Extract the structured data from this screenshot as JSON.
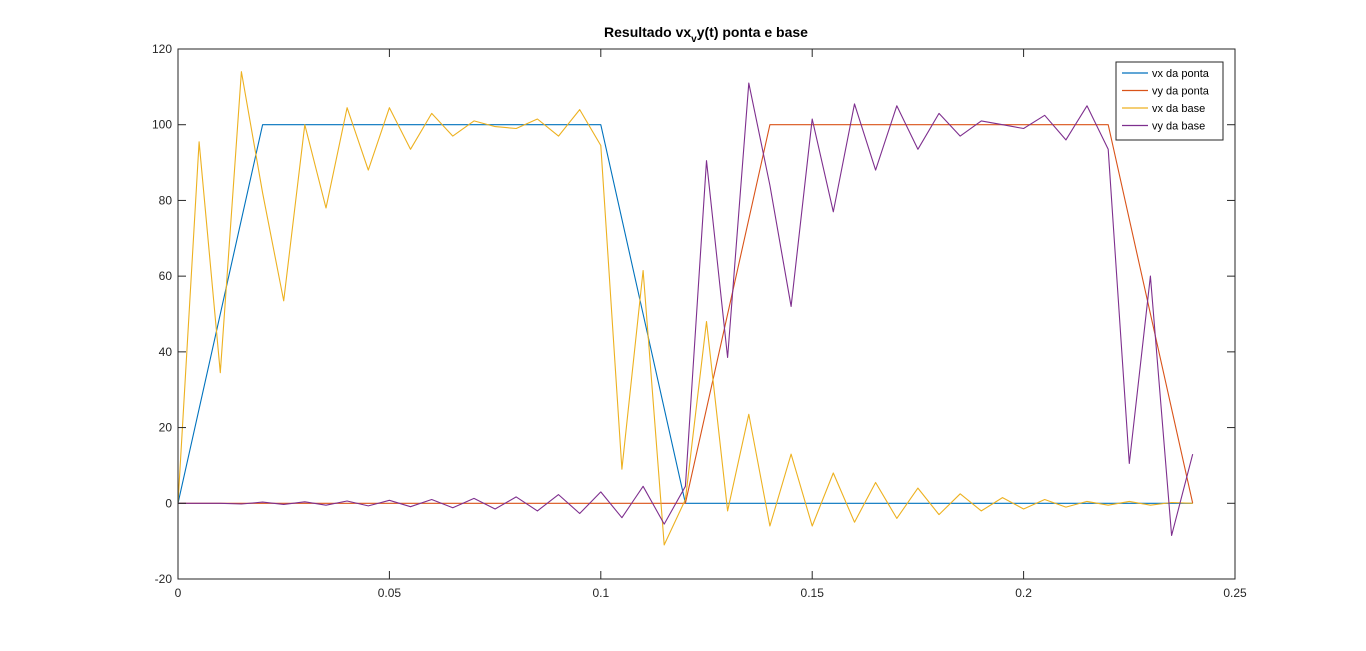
{
  "chart_data": {
    "type": "line",
    "title": {
      "main": "Resultado vx",
      "sub": "v",
      "rest": "y(t) ponta e base"
    },
    "xlim": [
      0,
      0.25
    ],
    "ylim": [
      -20,
      120
    ],
    "xticks": [
      0,
      0.05,
      0.1,
      0.15,
      0.2,
      0.25
    ],
    "xtick_labels": [
      "0",
      "0.05",
      "0.1",
      "0.15",
      "0.2",
      "0.25"
    ],
    "yticks": [
      -20,
      0,
      20,
      40,
      60,
      80,
      100,
      120
    ],
    "ytick_labels": [
      "-20",
      "0",
      "20",
      "40",
      "60",
      "80",
      "100",
      "120"
    ],
    "grid": false,
    "legend_position": "top-right",
    "series": [
      {
        "name": "vx da ponta",
        "color": "#0072BD",
        "x": [
          0,
          0.02,
          0.1,
          0.12,
          0.24
        ],
        "y": [
          0,
          100,
          100,
          0,
          0
        ]
      },
      {
        "name": " vy da ponta",
        "color": "#D95319",
        "x": [
          0,
          0.12,
          0.14,
          0.22,
          0.24
        ],
        "y": [
          0,
          0,
          100,
          100,
          0
        ]
      },
      {
        "name": "vx da base",
        "color": "#EDB120",
        "x": [
          0,
          0.005,
          0.01,
          0.015,
          0.02,
          0.025,
          0.03,
          0.035,
          0.04,
          0.045,
          0.05,
          0.055,
          0.06,
          0.065,
          0.07,
          0.075,
          0.08,
          0.085,
          0.09,
          0.095,
          0.1,
          0.105,
          0.11,
          0.115,
          0.12,
          0.125,
          0.13,
          0.135,
          0.14,
          0.145,
          0.15,
          0.155,
          0.16,
          0.165,
          0.17,
          0.175,
          0.18,
          0.185,
          0.19,
          0.195,
          0.2,
          0.205,
          0.21,
          0.215,
          0.22,
          0.225,
          0.23,
          0.235,
          0.24
        ],
        "y": [
          0,
          95.5,
          34.5,
          114,
          82,
          53.5,
          100,
          78,
          104.5,
          88,
          104.5,
          93.5,
          103,
          97,
          101,
          99.5,
          99,
          101.5,
          97,
          104,
          94.5,
          9,
          61.5,
          -11,
          1,
          48,
          -2,
          23.5,
          -6,
          13,
          -6,
          8,
          -5,
          5.5,
          -4,
          4,
          -3,
          2.5,
          -2,
          1.5,
          -1.5,
          1,
          -1,
          0.5,
          -0.5,
          0.5,
          -0.5,
          0.2,
          0
        ]
      },
      {
        "name": "vy da base",
        "color": "#7E2F8E",
        "x": [
          0,
          0.005,
          0.01,
          0.015,
          0.02,
          0.025,
          0.03,
          0.035,
          0.04,
          0.045,
          0.05,
          0.055,
          0.06,
          0.065,
          0.07,
          0.075,
          0.08,
          0.085,
          0.09,
          0.095,
          0.1,
          0.105,
          0.11,
          0.115,
          0.12,
          0.125,
          0.13,
          0.135,
          0.14,
          0.145,
          0.15,
          0.155,
          0.16,
          0.165,
          0.17,
          0.175,
          0.18,
          0.185,
          0.19,
          0.195,
          0.2,
          0.205,
          0.21,
          0.215,
          0.22,
          0.225,
          0.23,
          0.235,
          0.24
        ],
        "y": [
          0,
          0,
          0,
          -0.2,
          0.3,
          -0.3,
          0.4,
          -0.5,
          0.6,
          -0.7,
          0.8,
          -0.9,
          1,
          -1.2,
          1.3,
          -1.5,
          1.7,
          -2,
          2.3,
          -2.7,
          3,
          -3.8,
          4.5,
          -5.5,
          4.5,
          90.5,
          38.5,
          111,
          84,
          52,
          101.5,
          77,
          105.5,
          88,
          105,
          93.5,
          103,
          97,
          101,
          100,
          99,
          102.5,
          96,
          105,
          93.5,
          10.5,
          60,
          -8.5,
          13
        ]
      }
    ]
  }
}
